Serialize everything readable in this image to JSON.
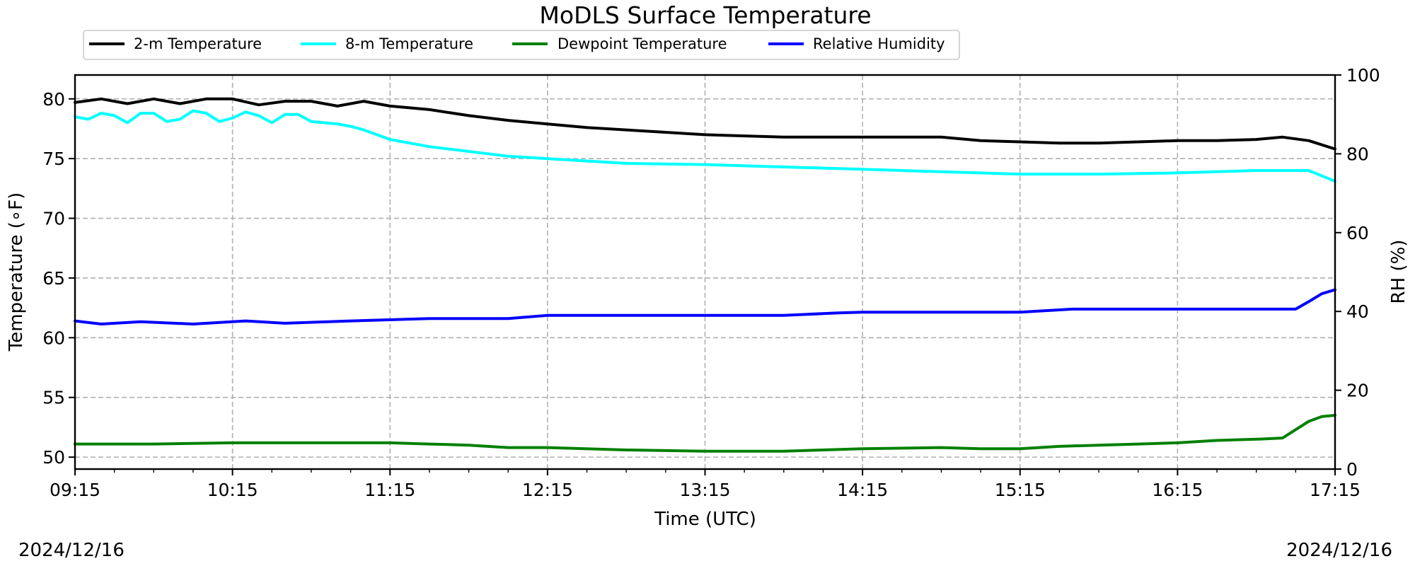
{
  "chart_data": {
    "type": "line",
    "title": "MoDLS Surface Temperature",
    "xlabel": "Time (UTC)",
    "ylabel": "Temperature (∘F)",
    "y2label": "RH (%)",
    "x_tick_labels": [
      "09:15",
      "10:15",
      "11:15",
      "12:15",
      "13:15",
      "14:15",
      "15:15",
      "16:15",
      "17:15"
    ],
    "x_range": [
      "09:15",
      "17:15"
    ],
    "ylim": [
      49,
      82
    ],
    "y_ticks": [
      50,
      55,
      60,
      65,
      70,
      75,
      80
    ],
    "y2lim": [
      0,
      100
    ],
    "y2_ticks": [
      0,
      20,
      40,
      60,
      80,
      100
    ],
    "grid": true,
    "legend_placement": "top",
    "start_date": "2024/12/16",
    "end_date": "2024/12/16",
    "series": [
      {
        "name": "2-m Temperature",
        "color": "#000000",
        "axis": "left",
        "x": [
          "09:15",
          "09:25",
          "09:35",
          "09:45",
          "09:55",
          "10:05",
          "10:15",
          "10:25",
          "10:35",
          "10:45",
          "10:55",
          "11:05",
          "11:15",
          "11:30",
          "11:45",
          "12:00",
          "12:15",
          "12:30",
          "12:45",
          "13:00",
          "13:15",
          "13:30",
          "13:45",
          "14:00",
          "14:15",
          "14:30",
          "14:45",
          "15:00",
          "15:15",
          "15:30",
          "15:45",
          "16:00",
          "16:15",
          "16:30",
          "16:45",
          "16:55",
          "17:05",
          "17:15"
        ],
        "y": [
          79.7,
          80.0,
          79.6,
          80.0,
          79.6,
          80.0,
          80.0,
          79.5,
          79.8,
          79.8,
          79.4,
          79.8,
          79.4,
          79.1,
          78.6,
          78.2,
          77.9,
          77.6,
          77.4,
          77.2,
          77.0,
          76.9,
          76.8,
          76.8,
          76.8,
          76.8,
          76.8,
          76.5,
          76.4,
          76.3,
          76.3,
          76.4,
          76.5,
          76.5,
          76.6,
          76.8,
          76.5,
          75.8
        ]
      },
      {
        "name": "8-m Temperature",
        "color": "#00ffff",
        "axis": "left",
        "x": [
          "09:15",
          "09:20",
          "09:25",
          "09:30",
          "09:35",
          "09:40",
          "09:45",
          "09:50",
          "09:55",
          "10:00",
          "10:05",
          "10:10",
          "10:15",
          "10:20",
          "10:25",
          "10:30",
          "10:35",
          "10:40",
          "10:45",
          "10:50",
          "10:55",
          "11:00",
          "11:05",
          "11:10",
          "11:15",
          "11:30",
          "11:45",
          "12:00",
          "12:15",
          "12:45",
          "13:15",
          "13:45",
          "14:15",
          "14:45",
          "15:15",
          "15:45",
          "16:15",
          "16:45",
          "17:05",
          "17:15"
        ],
        "y": [
          78.5,
          78.3,
          78.8,
          78.6,
          78.0,
          78.8,
          78.8,
          78.1,
          78.3,
          79.0,
          78.8,
          78.1,
          78.4,
          78.9,
          78.6,
          78.0,
          78.7,
          78.7,
          78.1,
          78.0,
          77.9,
          77.7,
          77.4,
          77.0,
          76.6,
          76.0,
          75.6,
          75.2,
          75.0,
          74.6,
          74.5,
          74.3,
          74.1,
          73.9,
          73.7,
          73.7,
          73.8,
          74.0,
          74.0,
          73.1
        ]
      },
      {
        "name": "Dewpoint Temperature",
        "color": "#008000",
        "axis": "left",
        "x": [
          "09:15",
          "09:45",
          "10:15",
          "10:45",
          "11:15",
          "11:30",
          "11:45",
          "12:00",
          "12:15",
          "12:45",
          "13:15",
          "13:45",
          "14:15",
          "14:45",
          "15:00",
          "15:15",
          "15:30",
          "15:45",
          "16:00",
          "16:15",
          "16:30",
          "16:45",
          "16:55",
          "17:00",
          "17:05",
          "17:10",
          "17:15"
        ],
        "y": [
          51.1,
          51.1,
          51.2,
          51.2,
          51.2,
          51.1,
          51.0,
          50.8,
          50.8,
          50.6,
          50.5,
          50.5,
          50.7,
          50.8,
          50.7,
          50.7,
          50.9,
          51.0,
          51.1,
          51.2,
          51.4,
          51.5,
          51.6,
          52.3,
          53.0,
          53.4,
          53.5
        ]
      },
      {
        "name": "Relative Humidity",
        "color": "#0000ff",
        "axis": "right",
        "x": [
          "09:15",
          "09:25",
          "09:40",
          "10:00",
          "10:20",
          "10:35",
          "11:00",
          "11:30",
          "12:00",
          "12:15",
          "12:45",
          "13:15",
          "13:45",
          "14:05",
          "14:15",
          "14:45",
          "15:15",
          "15:35",
          "15:45",
          "16:15",
          "16:45",
          "17:00",
          "17:05",
          "17:10",
          "17:15"
        ],
        "y": [
          37.6,
          36.8,
          37.4,
          36.8,
          37.6,
          37.0,
          37.6,
          38.2,
          38.2,
          39.0,
          39.0,
          39.0,
          39.0,
          39.6,
          39.8,
          39.8,
          39.8,
          40.6,
          40.6,
          40.6,
          40.6,
          40.6,
          42.5,
          44.5,
          45.5
        ]
      }
    ]
  }
}
